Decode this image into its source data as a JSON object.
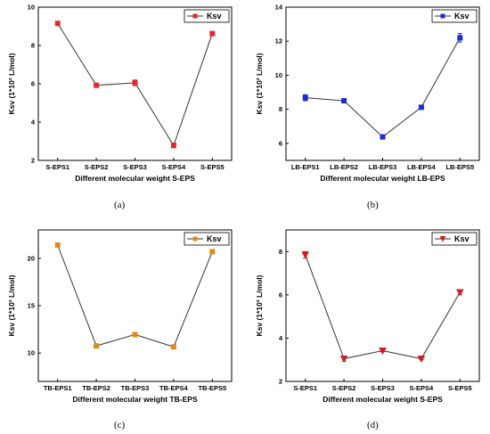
{
  "captions": [
    "(a)",
    "(b)",
    "(c)",
    "(d)"
  ],
  "chart_data": [
    {
      "type": "line",
      "categories": [
        "S-EPS1",
        "S-EPS2",
        "S-EPS3",
        "S-EPS4",
        "S-EPS5"
      ],
      "series": [
        {
          "name": "Ksv",
          "values": [
            9.15,
            5.92,
            6.05,
            2.78,
            8.62
          ],
          "errors": [
            0.05,
            0.06,
            0.15,
            0.12,
            0.05
          ],
          "color": "#e8272a",
          "marker": "square"
        }
      ],
      "ylabel": "Ksv (1*10³ L/mol)",
      "xlabel": "Different molecular weight S-EPS",
      "ylim": [
        2,
        10
      ],
      "yticks": [
        2,
        4,
        6,
        8,
        10
      ],
      "legend": "top-right"
    },
    {
      "type": "line",
      "categories": [
        "LB-EPS1",
        "LB-EPS2",
        "LB-EPS3",
        "LB-EPS4",
        "LB-EPS5"
      ],
      "series": [
        {
          "name": "Ksv",
          "values": [
            8.68,
            8.5,
            6.38,
            8.12,
            12.2
          ],
          "errors": [
            0.18,
            0.12,
            0.08,
            0.08,
            0.25
          ],
          "color": "#1f2bd4",
          "marker": "square"
        }
      ],
      "ylabel": "Ksv (1*10³ L/mol)",
      "xlabel": "Different molecular weight LB-EPS",
      "ylim": [
        5,
        14
      ],
      "yticks": [
        6,
        8,
        10,
        12,
        14
      ],
      "legend": "top-right"
    },
    {
      "type": "line",
      "categories": [
        "TB-EPS1",
        "TB-EPS2",
        "TB-EPS3",
        "TB-EPS4",
        "TB-EPS5"
      ],
      "series": [
        {
          "name": "Ksv",
          "values": [
            21.4,
            10.75,
            11.95,
            10.65,
            20.7
          ],
          "errors": [
            0.15,
            0.12,
            0.12,
            0.12,
            0.12
          ],
          "color": "#e08a1a",
          "marker": "square"
        }
      ],
      "ylabel": "Ksv (1*10³ L/mol)",
      "xlabel": "Different molecular weight TB-EPS",
      "ylim": [
        7,
        23
      ],
      "yticks": [
        10,
        15,
        20
      ],
      "legend": "top-right"
    },
    {
      "type": "line",
      "categories": [
        "S-EPS1",
        "S-EPS2",
        "S-EPS3",
        "S-EPS4",
        "S-EPS5"
      ],
      "series": [
        {
          "name": "Ksv",
          "values": [
            7.85,
            3.05,
            3.42,
            3.05,
            6.12
          ],
          "errors": [
            0.15,
            0.12,
            0.05,
            0.05,
            0.1
          ],
          "color": "#cc1f1f",
          "marker": "triangle-down"
        }
      ],
      "ylabel": "Ksv (1*10³ L/mol)",
      "xlabel": "Different molecular weight  S-EPS",
      "ylim": [
        2,
        9
      ],
      "yticks": [
        2,
        4,
        6,
        8
      ],
      "legend": "top-right"
    }
  ]
}
